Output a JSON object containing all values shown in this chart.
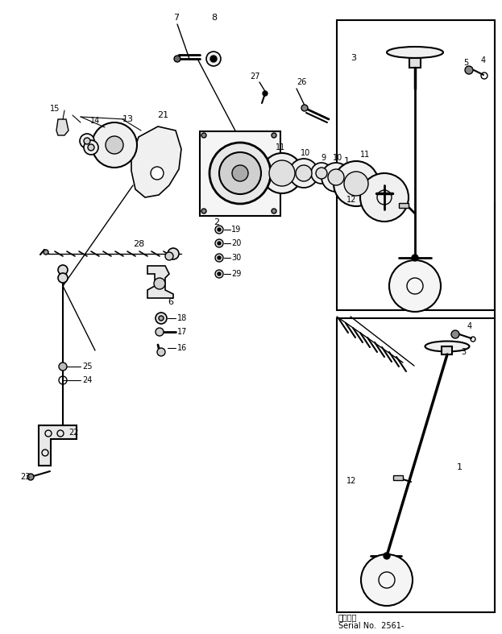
{
  "bg_color": "#ffffff",
  "lc": "#000000",
  "fig_width": 6.23,
  "fig_height": 7.87,
  "dpi": 100,
  "serial_jp": "適用番号",
  "serial_en": "Serial No.  2561-"
}
